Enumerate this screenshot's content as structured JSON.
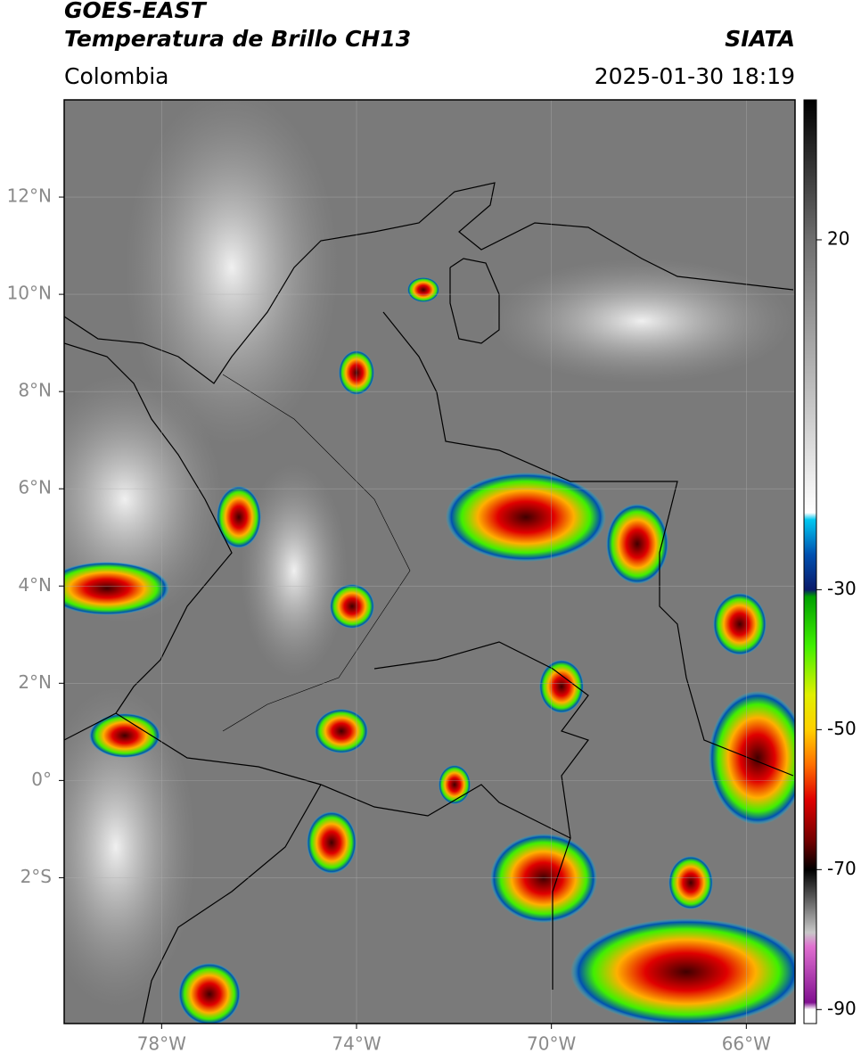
{
  "header": {
    "title": "GOES-EAST",
    "subtitle": "Temperatura de Brillo CH13",
    "region": "Colombia",
    "source": "SIATA",
    "timestamp": "2025-01-30 18:19"
  },
  "map": {
    "xlim": [
      -80,
      -65
    ],
    "ylim": [
      -5,
      14
    ],
    "grid": true,
    "xticks": [
      {
        "value": -78,
        "label": "78°W"
      },
      {
        "value": -74,
        "label": "74°W"
      },
      {
        "value": -70,
        "label": "70°W"
      },
      {
        "value": -66,
        "label": "66°W"
      }
    ],
    "yticks": [
      {
        "value": 12,
        "label": "12°N"
      },
      {
        "value": 10,
        "label": "10°N"
      },
      {
        "value": 8,
        "label": "8°N"
      },
      {
        "value": 6,
        "label": "6°N"
      },
      {
        "value": 4,
        "label": "4°N"
      },
      {
        "value": 2,
        "label": "2°N"
      },
      {
        "value": 0,
        "label": "0°"
      },
      {
        "value": -2,
        "label": "2°S"
      }
    ]
  },
  "colorbar": {
    "lim": [
      -92,
      40
    ],
    "ticks": [
      20,
      -30,
      -50,
      -70,
      -90
    ],
    "stops": [
      {
        "value": 40,
        "color": "#000000"
      },
      {
        "value": 20,
        "color": "#6e6e6e"
      },
      {
        "value": -19,
        "color": "#ffffff"
      },
      {
        "value": -20,
        "color": "#00c8f0"
      },
      {
        "value": -25,
        "color": "#0050b0"
      },
      {
        "value": -30,
        "color": "#0a1a6a"
      },
      {
        "value": -31,
        "color": "#00a000"
      },
      {
        "value": -38,
        "color": "#40f000"
      },
      {
        "value": -45,
        "color": "#e0f000"
      },
      {
        "value": -50,
        "color": "#ffd000"
      },
      {
        "value": -55,
        "color": "#ff7000"
      },
      {
        "value": -60,
        "color": "#e00000"
      },
      {
        "value": -66,
        "color": "#700000"
      },
      {
        "value": -70,
        "color": "#000000"
      },
      {
        "value": -79,
        "color": "#c8c8c8"
      },
      {
        "value": -81,
        "color": "#e070d0"
      },
      {
        "value": -89,
        "color": "#801090"
      },
      {
        "value": -90,
        "color": "#ffffff"
      },
      {
        "value": -92,
        "color": "#ffffff"
      }
    ]
  }
}
